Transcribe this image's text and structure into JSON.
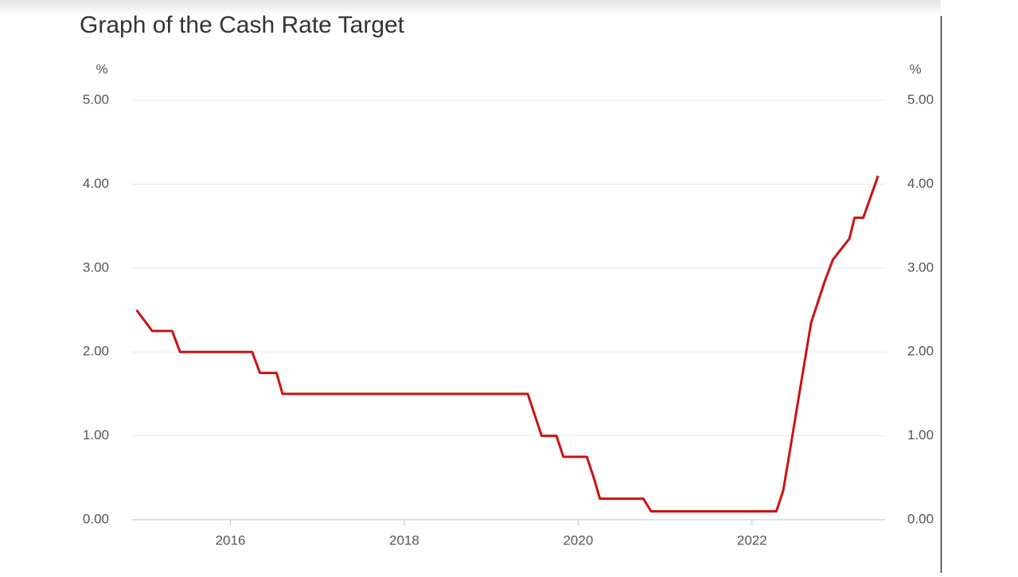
{
  "chart_data": {
    "type": "line",
    "title": "Graph of the Cash Rate Target",
    "ylabel": "%",
    "y2label": "%",
    "x": [
      2014.92,
      2015.1,
      2015.33,
      2015.42,
      2016.25,
      2016.34,
      2016.53,
      2016.6,
      2019.42,
      2019.5,
      2019.58,
      2019.75,
      2019.83,
      2020.1,
      2020.18,
      2020.25,
      2020.75,
      2020.84,
      2022.28,
      2022.36,
      2022.44,
      2022.52,
      2022.6,
      2022.68,
      2022.84,
      2022.93,
      2023.12,
      2023.18,
      2023.28,
      2023.45
    ],
    "values": [
      2.5,
      2.25,
      2.25,
      2.0,
      2.0,
      1.75,
      1.75,
      1.5,
      1.5,
      1.25,
      1.0,
      1.0,
      0.75,
      0.75,
      0.5,
      0.25,
      0.25,
      0.1,
      0.1,
      0.35,
      0.85,
      1.35,
      1.85,
      2.35,
      2.85,
      3.1,
      3.35,
      3.6,
      3.6,
      4.1
    ],
    "color": "#cc1111",
    "xlim": [
      2014.86,
      2023.54
    ],
    "xticks": [
      2016,
      2018,
      2020,
      2022
    ],
    "ylim": [
      0,
      5
    ],
    "yticks": [
      {
        "value": 0,
        "label": "0.00"
      },
      {
        "value": 1,
        "label": "1.00"
      },
      {
        "value": 2,
        "label": "2.00"
      },
      {
        "value": 3,
        "label": "3.00"
      },
      {
        "value": 4,
        "label": "4.00"
      },
      {
        "value": 5,
        "label": "5.00"
      }
    ],
    "y2lim": [
      0,
      5
    ],
    "y2ticks": [
      {
        "value": 0,
        "label": "0.00"
      },
      {
        "value": 1,
        "label": "1.00"
      },
      {
        "value": 2,
        "label": "2.00"
      },
      {
        "value": 3,
        "label": "3.00"
      },
      {
        "value": 4,
        "label": "4.00"
      },
      {
        "value": 5,
        "label": "5.00"
      }
    ],
    "grid": true
  }
}
